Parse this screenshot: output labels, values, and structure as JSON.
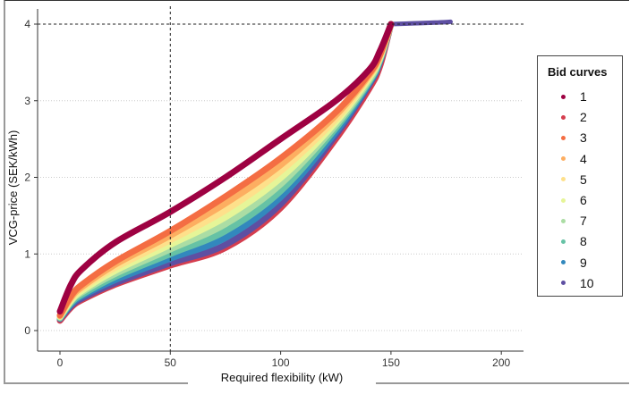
{
  "chart_data": {
    "type": "line",
    "xlabel": "Required flexibility (kW)",
    "ylabel": "VCG-price (SEK/kWh)",
    "xlim": [
      -7,
      210
    ],
    "ylim": [
      -0.2,
      4.3
    ],
    "xticks": [
      "0",
      "50",
      "100",
      "150",
      "200"
    ],
    "yticks": [
      "0",
      "1",
      "2",
      "3",
      "4"
    ],
    "grid": "horizontal dotted",
    "reference_lines": {
      "hline_y": 4,
      "vline_x": 50
    },
    "legend": {
      "title": "Bid curves",
      "position": "right"
    },
    "x": [
      0,
      5,
      10,
      25,
      50,
      75,
      100,
      125,
      140,
      145,
      150
    ],
    "series": [
      {
        "name": "1",
        "color": "#9E0142",
        "values": [
          0.25,
          0.6,
          0.8,
          1.15,
          1.55,
          2.0,
          2.5,
          3.0,
          3.4,
          3.65,
          4.0
        ]
      },
      {
        "name": "2",
        "color": "#D53E4F",
        "values": [
          0.13,
          0.3,
          0.4,
          0.6,
          0.85,
          1.08,
          1.6,
          2.5,
          3.15,
          3.45,
          4.0
        ]
      },
      {
        "name": "3",
        "color": "#F46D43",
        "values": [
          0.2,
          0.45,
          0.6,
          0.9,
          1.3,
          1.75,
          2.25,
          2.85,
          3.35,
          3.6,
          4.0
        ]
      },
      {
        "name": "4",
        "color": "#FDAE61",
        "values": [
          0.19,
          0.43,
          0.57,
          0.86,
          1.24,
          1.66,
          2.16,
          2.81,
          3.33,
          3.59,
          4.0
        ]
      },
      {
        "name": "5",
        "color": "#FEE08B",
        "values": [
          0.19,
          0.41,
          0.55,
          0.82,
          1.18,
          1.57,
          2.08,
          2.76,
          3.31,
          3.57,
          4.0
        ]
      },
      {
        "name": "6",
        "color": "#E6F598",
        "values": [
          0.18,
          0.39,
          0.52,
          0.78,
          1.12,
          1.48,
          1.99,
          2.72,
          3.29,
          3.56,
          4.0
        ]
      },
      {
        "name": "7",
        "color": "#ABDDA4",
        "values": [
          0.17,
          0.38,
          0.5,
          0.74,
          1.06,
          1.39,
          1.91,
          2.68,
          3.26,
          3.54,
          4.0
        ]
      },
      {
        "name": "8",
        "color": "#66C2A5",
        "values": [
          0.16,
          0.36,
          0.47,
          0.7,
          1.0,
          1.3,
          1.82,
          2.64,
          3.24,
          3.53,
          4.0
        ]
      },
      {
        "name": "9",
        "color": "#3288BD",
        "values": [
          0.16,
          0.34,
          0.45,
          0.66,
          0.94,
          1.21,
          1.74,
          2.59,
          3.22,
          3.51,
          4.0
        ]
      },
      {
        "name": "10",
        "color": "#5E4FA2",
        "values": [
          0.15,
          0.32,
          0.42,
          0.62,
          0.88,
          1.12,
          1.65,
          2.55,
          3.2,
          3.5,
          4.0
        ],
        "tail": [
          [
            150,
            4.0
          ],
          [
            160,
            4.01
          ],
          [
            170,
            4.02
          ],
          [
            177,
            4.03
          ]
        ]
      }
    ]
  }
}
